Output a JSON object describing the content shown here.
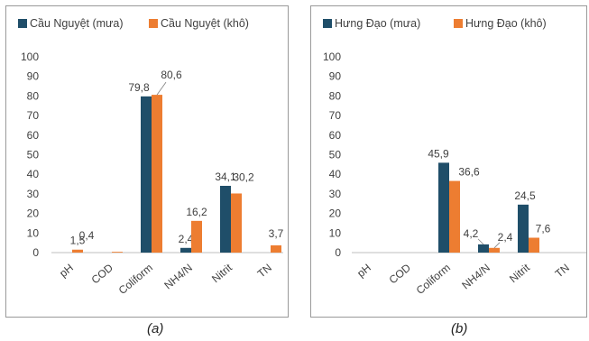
{
  "chart_data": [
    {
      "type": "bar",
      "categories": [
        "pH",
        "COD",
        "Coliform",
        "NH4/N",
        "Nitrit",
        "TN"
      ],
      "series": [
        {
          "name": "Cầu Nguyệt  (mưa)",
          "values": [
            0,
            0,
            79.8,
            2.4,
            34.1,
            0
          ],
          "labels": [
            "",
            "",
            "79,8",
            "2,4",
            "34,1",
            ""
          ]
        },
        {
          "name": "Cầu Nguyệt (khô)",
          "values": [
            1.5,
            0.4,
            80.6,
            16.2,
            30.2,
            3.7
          ],
          "labels": [
            "1,5",
            "0,4",
            "80,6",
            "16,2",
            "30,2",
            "3,7"
          ]
        }
      ],
      "yticks": [
        "0",
        "10",
        "20",
        "30",
        "40",
        "50",
        "60",
        "70",
        "80",
        "90",
        "100"
      ],
      "ylim": [
        0,
        100
      ],
      "legend": "top",
      "grid": false,
      "caption": "(a)"
    },
    {
      "type": "bar",
      "categories": [
        "pH",
        "COD",
        "Coliform",
        "NH4/N",
        "Nitrit",
        "TN"
      ],
      "series": [
        {
          "name": "Hưng Đạo  (mưa)",
          "values": [
            0,
            0,
            45.9,
            4.2,
            24.5,
            0
          ],
          "labels": [
            "",
            "",
            "45,9",
            "4,2",
            "24,5",
            ""
          ]
        },
        {
          "name": "Hưng Đạo  (khô)",
          "values": [
            0,
            0,
            36.6,
            2.4,
            7.6,
            0
          ],
          "labels": [
            "",
            "",
            "36,6",
            "2,4",
            "7,6",
            ""
          ]
        }
      ],
      "yticks": [
        "0",
        "10",
        "20",
        "30",
        "40",
        "50",
        "60",
        "70",
        "80",
        "90",
        "100"
      ],
      "ylim": [
        0,
        100
      ],
      "legend": "top",
      "grid": false,
      "caption": "(b)"
    }
  ],
  "colors": {
    "rain": "#1f4e69",
    "dry": "#ed7d31",
    "axis": "#bfbfbf",
    "text": "#404040"
  }
}
